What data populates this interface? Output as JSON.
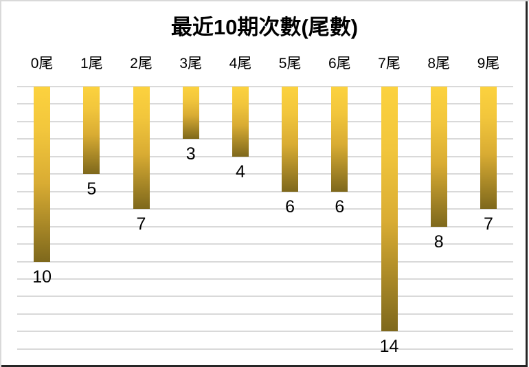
{
  "title": "最近10期次數(尾數)",
  "chart_data": {
    "type": "bar",
    "title": "最近10期次數(尾數)",
    "categories": [
      "0尾",
      "1尾",
      "2尾",
      "3尾",
      "4尾",
      "5尾",
      "6尾",
      "7尾",
      "8尾",
      "9尾"
    ],
    "values": [
      10,
      5,
      7,
      3,
      4,
      6,
      6,
      14,
      8,
      7
    ],
    "orientation": "vertical bars hanging downward from top (reversed value axis)",
    "value_axis": {
      "min": 0,
      "max": 15,
      "major_unit": 1,
      "tick_labels_visible": false
    },
    "category_axis_position": "top",
    "data_labels": "outside end (below each bar)",
    "legend": "none",
    "grid": true,
    "colors": {
      "bar_gradient_top": "#FCD23E",
      "bar_gradient_bottom": "#7E681C",
      "gridline": "#D9D9D9",
      "text": "#000000",
      "background": "#FFFFFF",
      "frame_light": "#D9D9D9",
      "frame_dark": "#262626"
    }
  }
}
